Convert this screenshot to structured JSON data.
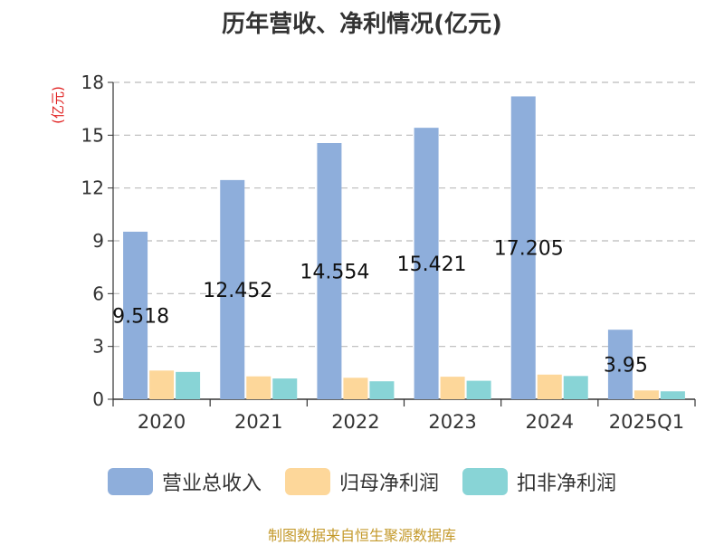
{
  "chart_data": {
    "type": "bar",
    "title": "历年营收、净利情况(亿元)",
    "ylabel": "(亿元)",
    "xlabel": "",
    "categories": [
      "2020",
      "2021",
      "2022",
      "2023",
      "2024",
      "2025Q1"
    ],
    "ylim": [
      0,
      18
    ],
    "yticks": [
      0,
      3,
      6,
      9,
      12,
      15,
      18
    ],
    "grid": true,
    "legend_position": "bottom",
    "series": [
      {
        "name": "营业总收入",
        "color": "#8eaedb",
        "values": [
          9.518,
          12.452,
          14.554,
          15.421,
          17.205,
          3.95
        ],
        "labels": [
          "9.518",
          "12.452",
          "14.554",
          "15.421",
          "17.205",
          "3.95"
        ]
      },
      {
        "name": "归母净利润",
        "color": "#fdd79a",
        "values": [
          1.63,
          1.3,
          1.22,
          1.28,
          1.4,
          0.5
        ]
      },
      {
        "name": "扣非净利润",
        "color": "#88d4d6",
        "values": [
          1.55,
          1.18,
          1.02,
          1.05,
          1.32,
          0.45
        ]
      }
    ]
  },
  "source": "制图数据来自恒生聚源数据库"
}
